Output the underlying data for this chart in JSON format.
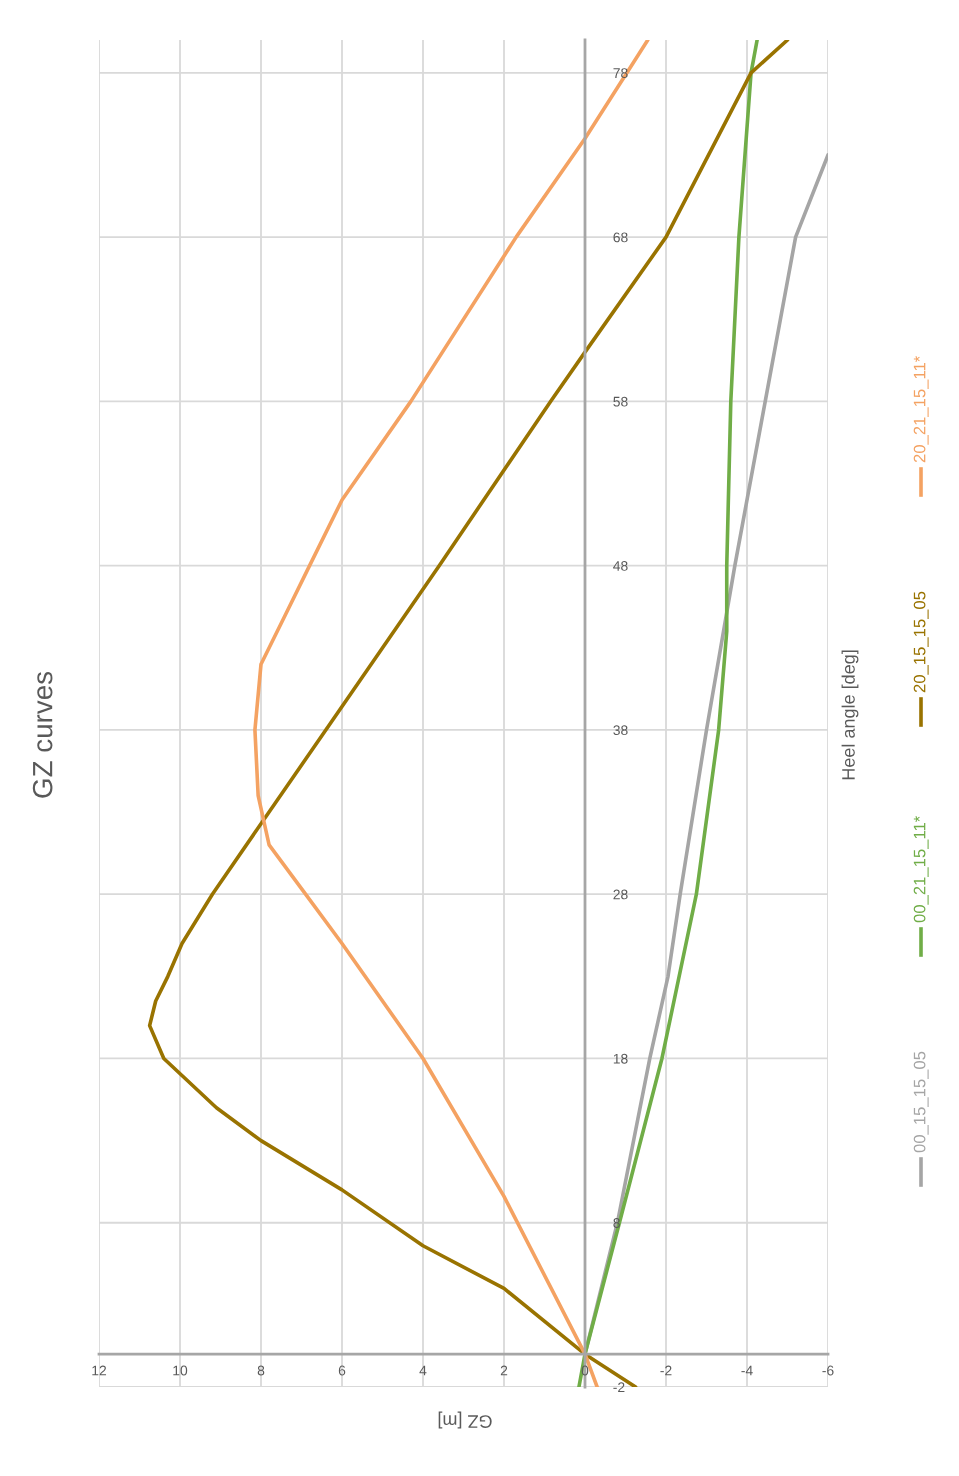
{
  "chart_data": {
    "type": "line",
    "title": "GZ curves",
    "xlabel": "GZ [m]",
    "ylabel": "Heel angle [deg]",
    "xlim": [
      12,
      -6
    ],
    "xticks": [
      12,
      10,
      8,
      6,
      4,
      2,
      0,
      -2,
      -4,
      -6
    ],
    "ylim": [
      -2,
      80
    ],
    "yticks": [
      -2,
      8,
      18,
      28,
      38,
      48,
      58,
      68,
      78
    ],
    "grid": true,
    "legend": "right",
    "series": [
      {
        "name": "00_15_15_05",
        "color": "#a5a5a5",
        "values": [
          0,
          8,
          18,
          23,
          28,
          38,
          48,
          58,
          68,
          73
        ],
        "x": [
          0,
          -0.8,
          -1.6,
          -2.05,
          -2.35,
          -3.0,
          -3.7,
          -4.45,
          -5.2,
          -6.0
        ]
      },
      {
        "name": "00_21_15_11*",
        "color": "#70ad47",
        "values": [
          -2,
          0,
          8,
          18,
          28,
          38,
          44,
          48,
          58,
          68,
          78,
          80
        ],
        "x": [
          0.15,
          0,
          -0.85,
          -1.9,
          -2.75,
          -3.3,
          -3.5,
          -3.5,
          -3.6,
          -3.8,
          -4.1,
          -4.25
        ]
      },
      {
        "name": "20_15_15_05",
        "color": "#997300",
        "values": [
          -2,
          0,
          4,
          6.6,
          10,
          13,
          15,
          18,
          20,
          21.5,
          23,
          25,
          28,
          33,
          38,
          48,
          58,
          61,
          68,
          78,
          80
        ],
        "x": [
          -1.25,
          0,
          2,
          4,
          6,
          8,
          9.1,
          10.4,
          10.75,
          10.6,
          10.3,
          9.95,
          9.2,
          7.8,
          6.4,
          3.6,
          0.85,
          0,
          -2,
          -4.1,
          -5.0
        ]
      },
      {
        "name": "20_21_15_11*",
        "color": "#f4a262",
        "values": [
          -2,
          0,
          9.6,
          18,
          25,
          28,
          31,
          34,
          38,
          42,
          45,
          48,
          52,
          58,
          68,
          74,
          80
        ],
        "x": [
          -0.3,
          0,
          2,
          4,
          6,
          6.9,
          7.8,
          8.07,
          8.15,
          8.0,
          7.4,
          6.8,
          6.0,
          4.3,
          1.7,
          0,
          -1.55
        ]
      }
    ]
  }
}
